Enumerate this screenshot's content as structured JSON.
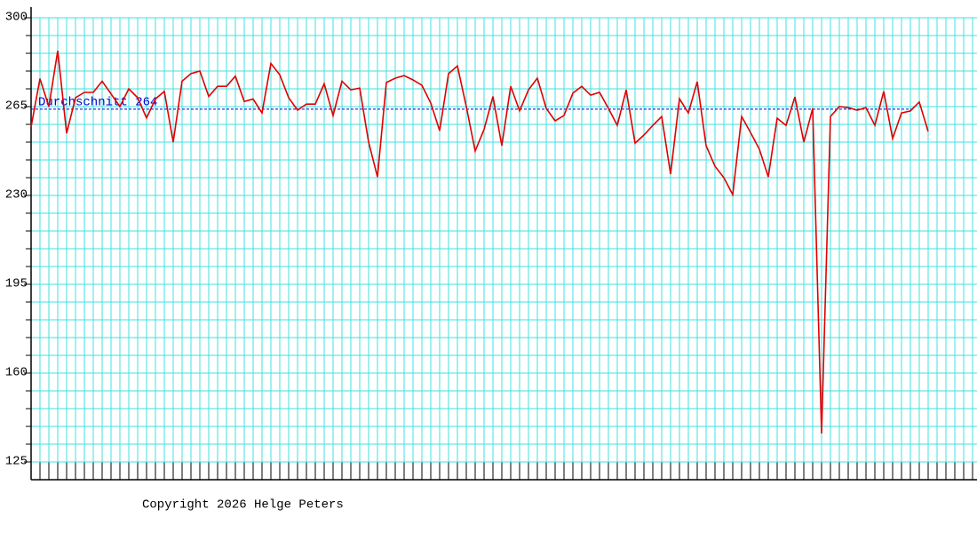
{
  "chart_data": {
    "type": "line",
    "values": [
      257,
      276,
      265,
      287,
      254.5,
      268.5,
      270.6,
      270.6,
      275,
      270,
      265,
      272,
      268.5,
      260.5,
      268,
      271,
      251,
      275,
      278,
      279,
      269,
      273,
      273,
      277,
      267,
      268,
      262.5,
      282,
      277.5,
      268.5,
      263.6,
      266,
      266,
      274,
      261.5,
      275,
      271.6,
      272.3,
      251,
      237.3,
      274.5,
      276.2,
      277.2,
      275.5,
      273.4,
      266.4,
      255.5,
      278,
      281,
      265,
      247.5,
      256,
      269,
      249.6,
      273,
      263.3,
      271.6,
      276.2,
      264.3,
      259.4,
      261.5,
      270.3,
      273,
      269.5,
      270.6,
      264.3,
      257.6,
      271.6,
      250.6,
      253.8,
      257.6,
      261.1,
      238.4,
      268.1,
      262.5,
      274.8,
      249.6,
      241.5,
      237,
      230.3,
      261.1,
      254.8,
      248.2,
      237.3,
      260.4,
      257.6,
      268.8,
      251,
      264.3,
      136.2,
      261.1,
      265,
      264.6,
      263.6,
      264.6,
      257.6,
      271,
      252.4,
      262.5,
      263.3,
      266.8,
      255.2
    ],
    "color": "#e00000",
    "ylim": [
      118,
      300
    ],
    "yticks": [
      125,
      160,
      195,
      230,
      265,
      300
    ],
    "grid": true,
    "grid_color": "#40e0e0",
    "average": 264,
    "average_label": "Durchschnitt 264",
    "average_color": "#0000cc"
  },
  "footer": "Copyright 2026 Helge Peters"
}
